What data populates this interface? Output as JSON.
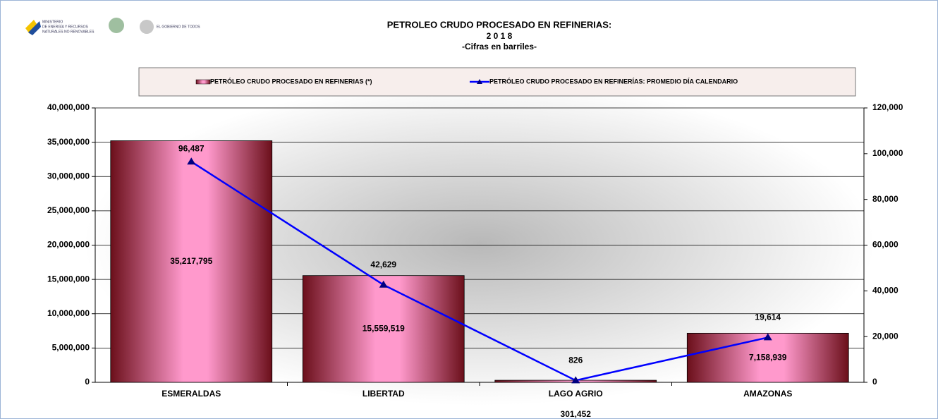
{
  "logos": [
    "MINISTERIO",
    "DE ENERGÍA Y RECURSOS",
    "NATURALES NO RENOVABLES",
    "EL GOBIERNO DE TODOS"
  ],
  "chart_data": {
    "type": "bar",
    "title": "PETROLEO CRUDO PROCESADO EN REFINERIAS:",
    "subtitle": [
      "2 0 1 8",
      "-Cifras en barriles-"
    ],
    "categories": [
      "ESMERALDAS",
      "LIBERTAD",
      "LAGO AGRIO",
      "AMAZONAS"
    ],
    "series": [
      {
        "name": "PETRÓLEO CRUDO PROCESADO EN REFINERIAS (*)",
        "type": "bar",
        "color": "#ff99cc",
        "values": [
          35217795,
          15559519,
          301452,
          7158939
        ],
        "value_labels": [
          "35,217,795",
          "15,559,519",
          "301,452",
          "7,158,939"
        ]
      },
      {
        "name": "PETRÓLEO CRUDO PROCESADO EN REFINERÍAS:  PROMEDIO DÍA CALENDARIO",
        "type": "line",
        "axis": "y2",
        "color": "#0000ff",
        "values": [
          96487,
          42629,
          826,
          19614
        ],
        "value_labels": [
          "96,487",
          "42,629",
          "826",
          "19,614"
        ]
      }
    ],
    "ylim": [
      0,
      40000000
    ],
    "yticks": [
      {
        "value": 0,
        "label": "0"
      },
      {
        "value": 5000000,
        "label": "5,000,000"
      },
      {
        "value": 10000000,
        "label": "10,000,000"
      },
      {
        "value": 15000000,
        "label": "15,000,000"
      },
      {
        "value": 20000000,
        "label": "20,000,000"
      },
      {
        "value": 25000000,
        "label": "25,000,000"
      },
      {
        "value": 30000000,
        "label": "30,000,000"
      },
      {
        "value": 35000000,
        "label": "35,000,000"
      },
      {
        "value": 40000000,
        "label": "40,000,000"
      }
    ],
    "y2lim": [
      0,
      120000
    ],
    "y2ticks": [
      {
        "value": 0,
        "label": "0"
      },
      {
        "value": 20000,
        "label": "20,000"
      },
      {
        "value": 40000,
        "label": "40,000"
      },
      {
        "value": 60000,
        "label": "60,000"
      },
      {
        "value": 80000,
        "label": "80,000"
      },
      {
        "value": 100000,
        "label": "100,000"
      },
      {
        "value": 120000,
        "label": "120,000"
      }
    ],
    "grid": true
  }
}
